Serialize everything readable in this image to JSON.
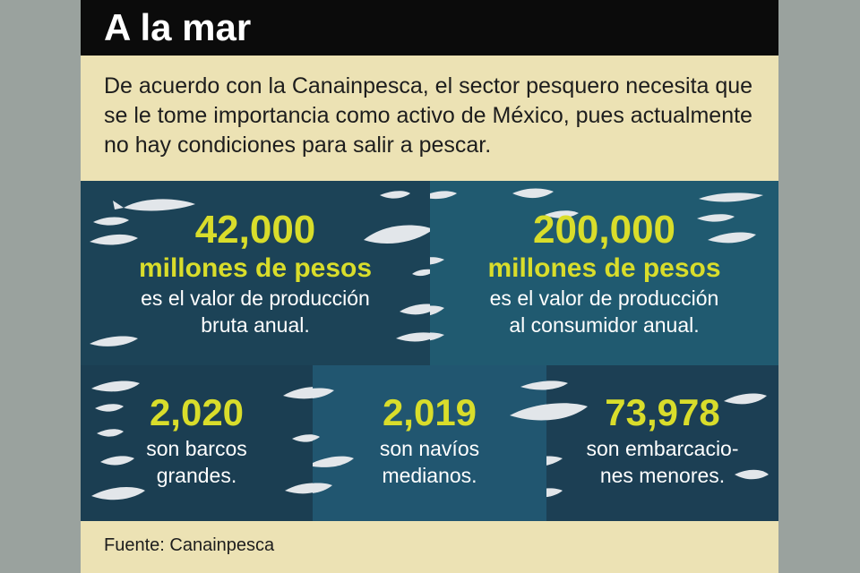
{
  "title": "A la mar",
  "intro": "De acuerdo con la Canainpesca, el sector pesquero necesita que se le tome importancia como activo de México, pues actualmente no hay condiciones para salir a pescar.",
  "colors": {
    "title_bar": "#0b0b0b",
    "card_background": "#ece2b4",
    "number_accent": "#d9dd2b",
    "panel_dark": "#1c4357",
    "panel_teal": "#205a70",
    "fish": "#e2e6ea"
  },
  "top_stats": [
    {
      "value": "42,000",
      "unit": "millones de pesos",
      "desc_line1": "es el valor de producción",
      "desc_line2": "bruta anual."
    },
    {
      "value": "200,000",
      "unit": "millones de pesos",
      "desc_line1": "es el valor de producción",
      "desc_line2": "al consumidor anual."
    }
  ],
  "bottom_stats": [
    {
      "value": "2,020",
      "desc_line1": "son barcos",
      "desc_line2": "grandes."
    },
    {
      "value": "2,019",
      "desc_line1": "son navíos",
      "desc_line2": "medianos."
    },
    {
      "value": "73,978",
      "desc_line1": "son embarcacio-",
      "desc_line2": "nes menores."
    }
  ],
  "source": "Fuente: Canainpesca",
  "decoration_icon": "fish-icon"
}
